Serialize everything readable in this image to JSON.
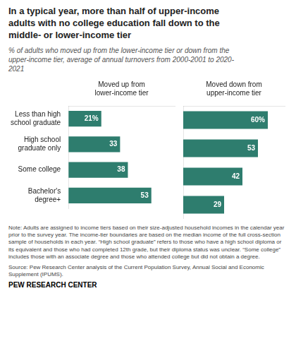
{
  "chart_data": [
    {
      "type": "bar",
      "orientation": "horizontal",
      "title": "In a typical year, more than half of upper-income\nadults with no college education fall down to the\nmiddle- or lower-income tier",
      "subtitle": "% of adults who moved up from the lower-income tier or down from the\nupper-income tier, average of annual turnovers from 2000-2001 to 2020-\n2021",
      "annotations": [
        "Note: Adults are assigned to income tiers based on their size-adjusted household incomes in the calendar year prior to the survey year. The income-tier boundaries are based on the median income of the full cross-section sample of households in each year. “High school graduate” refers to those who have a high school diploma or its equivalent and those who had completed 12th grade, but their diploma status was unclear. “Some college” includes those with an associate degree and those who attended college but did not obtain a degree.",
        "Source: Pew Research Center analysis of the Current Population Survey, Annual Social and Economic Supplement (IPUMS).",
        "PEW RESEARCH CENTER"
      ],
      "xlabel": "Moved up from\nlower-income tier",
      "categories": [
        "Less than high\nschool graduate",
        "High school\ngraduate only",
        "Some college",
        "Bachelor's\ndegree+"
      ],
      "values": [
        21,
        33,
        38,
        53
      ],
      "value_labels": [
        "21%",
        "33",
        "38",
        "53"
      ],
      "data_labels": true,
      "color": "#2e7d6e",
      "xlim": [
        0,
        68
      ],
      "xticks": [],
      "tick_labels": "y",
      "grid": false
    },
    {
      "type": "bar",
      "orientation": "horizontal",
      "xlabel": "Moved down from\nupper-income tier",
      "categories": [
        "Less than high\nschool graduate",
        "High school\ngraduate only",
        "Some college",
        "Bachelor's\ndegree+"
      ],
      "values": [
        60,
        53,
        42,
        29
      ],
      "value_labels": [
        "60%",
        "53",
        "42",
        "29"
      ],
      "data_labels": true,
      "color": "#2e7d6e",
      "xlim": [
        0,
        72
      ],
      "xticks": [],
      "tick_labels": false,
      "grid": false
    }
  ]
}
